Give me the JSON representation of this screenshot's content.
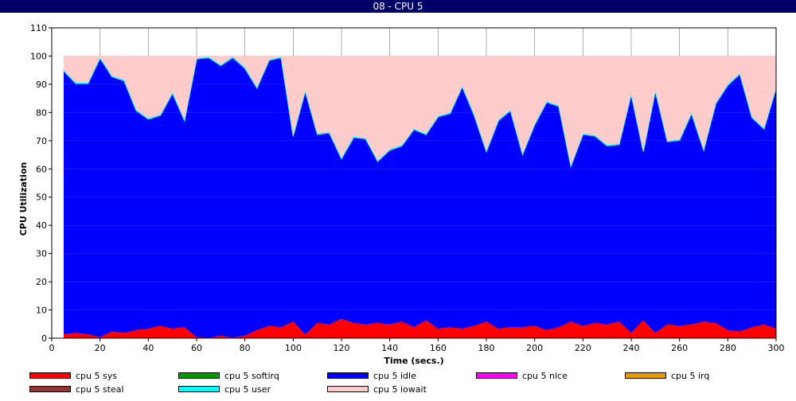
{
  "window": {
    "title": "08 - CPU 5"
  },
  "chart_data": {
    "type": "area",
    "stacked": true,
    "xlabel": "Time (secs.)",
    "ylabel": "CPU Utilization",
    "xlim": [
      0,
      300
    ],
    "ylim": [
      0,
      110
    ],
    "xticks": [
      0,
      20,
      40,
      60,
      80,
      100,
      120,
      140,
      160,
      180,
      200,
      220,
      240,
      260,
      280,
      300
    ],
    "yticks": [
      0,
      10,
      20,
      30,
      40,
      50,
      60,
      70,
      80,
      90,
      100,
      110
    ],
    "grid": true,
    "legend_position": "bottom",
    "x": [
      5,
      10,
      15,
      20,
      25,
      30,
      35,
      40,
      45,
      50,
      55,
      60,
      65,
      70,
      75,
      80,
      85,
      90,
      95,
      100,
      105,
      110,
      115,
      120,
      125,
      130,
      135,
      140,
      145,
      150,
      155,
      160,
      165,
      170,
      175,
      180,
      185,
      190,
      195,
      200,
      205,
      210,
      215,
      220,
      225,
      230,
      235,
      240,
      245,
      250,
      255,
      260,
      265,
      270,
      275,
      280,
      285,
      290,
      295,
      300
    ],
    "series": [
      {
        "name": "cpu 5 sys",
        "color": "#ff0000",
        "values": [
          1.5,
          2,
          1.5,
          0.5,
          2.5,
          2,
          3,
          3.5,
          4.5,
          3.5,
          4,
          0.5,
          0.2,
          1,
          0.3,
          1,
          3,
          4.5,
          4,
          6,
          1.5,
          5.5,
          5,
          7,
          5.5,
          5,
          5.5,
          5,
          6,
          4,
          6.5,
          3.5,
          4,
          3.5,
          4.5,
          6,
          3.5,
          4,
          4,
          4.5,
          3,
          4,
          6,
          4.5,
          5.5,
          5,
          6,
          2,
          6.5,
          2,
          5,
          4.5,
          5,
          6,
          5.5,
          3,
          2.5,
          4,
          5,
          3.5
        ]
      },
      {
        "name": "cpu 5 softirq",
        "color": "#009900",
        "values": [
          0,
          0,
          0,
          0,
          0,
          0,
          0,
          0,
          0,
          0,
          0,
          0,
          0,
          0,
          0,
          0,
          0,
          0,
          0,
          0,
          0,
          0,
          0,
          0,
          0,
          0,
          0,
          0,
          0,
          0,
          0,
          0,
          0,
          0,
          0,
          0,
          0,
          0,
          0,
          0,
          0,
          0,
          0,
          0,
          0,
          0,
          0,
          0,
          0,
          0,
          0,
          0,
          0,
          0,
          0,
          0,
          0,
          0,
          0,
          0
        ]
      },
      {
        "name": "cpu 5 idle",
        "color": "#0000ff",
        "values": [
          93.2,
          88.3,
          88.8,
          98.8,
          90.2,
          89.3,
          77.7,
          74.2,
          74.5,
          83.4,
          73.2,
          98.5,
          99.3,
          95.7,
          99.2,
          94.7,
          85.7,
          94,
          95.5,
          65.7,
          86.2,
          66.8,
          67.8,
          56.7,
          65.7,
          65.7,
          57.2,
          61.7,
          62.2,
          70,
          65.7,
          75,
          75.7,
          85.7,
          74.5,
          60.2,
          73.7,
          76.7,
          61.2,
          71.2,
          80.7,
          78.2,
          55,
          67.8,
          66.2,
          63.2,
          62.7,
          84.5,
          59.7,
          85.7,
          64.7,
          65.7,
          74.7,
          60.7,
          77.7,
          86.7,
          91.2,
          74.2,
          69.2,
          85.2
        ]
      },
      {
        "name": "cpu 5 nice",
        "color": "#ff00ff",
        "values": [
          0,
          0,
          0,
          0,
          0,
          0,
          0,
          0,
          0,
          0,
          0,
          0,
          0,
          0,
          0,
          0,
          0,
          0,
          0,
          0,
          0,
          0,
          0,
          0,
          0,
          0,
          0,
          0,
          0,
          0,
          0,
          0,
          0,
          0,
          0,
          0,
          0,
          0,
          0,
          0,
          0,
          0,
          0,
          0,
          0,
          0,
          0,
          0,
          0,
          0,
          0,
          0,
          0,
          0,
          0,
          0,
          0,
          0,
          0,
          0
        ]
      },
      {
        "name": "cpu 5 irq",
        "color": "#e69900",
        "values": [
          0,
          0,
          0,
          0,
          0,
          0,
          0,
          0,
          0,
          0,
          0,
          0,
          0,
          0,
          0,
          0,
          0,
          0,
          0,
          0,
          0,
          0,
          0,
          0,
          0,
          0,
          0,
          0,
          0,
          0,
          0,
          0,
          0,
          0,
          0,
          0,
          0,
          0,
          0,
          0,
          0,
          0,
          0,
          0,
          0,
          0,
          0,
          0,
          0,
          0,
          0,
          0,
          0,
          0,
          0,
          0,
          0,
          0,
          0,
          0
        ]
      },
      {
        "name": "cpu 5 steal",
        "color": "#993333",
        "values": [
          0,
          0,
          0,
          0,
          0,
          0,
          0,
          0,
          0,
          0,
          0,
          0,
          0,
          0,
          0,
          0,
          0,
          0,
          0,
          0,
          0,
          0,
          0,
          0,
          0,
          0,
          0,
          0,
          0,
          0,
          0,
          0,
          0,
          0,
          0,
          0,
          0,
          0,
          0,
          0,
          0,
          0,
          0,
          0,
          0,
          0,
          0,
          0,
          0,
          0,
          0,
          0,
          0,
          0,
          0,
          0,
          0,
          0,
          0,
          0
        ]
      },
      {
        "name": "cpu 5 user",
        "color": "#00ffff",
        "values": [
          0.3,
          0.3,
          0.3,
          0.3,
          0.3,
          0.3,
          0.3,
          0.3,
          0.3,
          0.3,
          0.3,
          0.3,
          0.3,
          0.3,
          0.3,
          0.3,
          0.3,
          0.3,
          0.3,
          0.3,
          0.3,
          0.3,
          0.3,
          0.3,
          0.3,
          0.3,
          0.3,
          0.3,
          0.3,
          0.3,
          0.3,
          0.3,
          0.3,
          0.3,
          0.3,
          0.3,
          0.3,
          0.3,
          0.3,
          0.3,
          0.3,
          0.3,
          0.3,
          0.3,
          0.3,
          0.3,
          0.3,
          0.3,
          0.3,
          0.3,
          0.3,
          0.3,
          0.3,
          0.3,
          0.3,
          0.3,
          0.3,
          0.3,
          0.3,
          0.3
        ]
      },
      {
        "name": "cpu 5 iowait",
        "color": "#ffcccc",
        "values": [
          5,
          9.4,
          9.4,
          0.4,
          7,
          8.4,
          19,
          22,
          20.7,
          12.8,
          22.5,
          0.7,
          0.2,
          3,
          0.2,
          4,
          11,
          1.2,
          0.2,
          28,
          12,
          27.4,
          26.9,
          36,
          28.5,
          29,
          37,
          33,
          31.5,
          25.7,
          27.5,
          21.2,
          20,
          10.5,
          20.7,
          33.5,
          22.5,
          19,
          34.5,
          24,
          16,
          17.5,
          38.7,
          27.4,
          28,
          31.5,
          31,
          13.2,
          33.5,
          12,
          30,
          29.5,
          20,
          33,
          16.5,
          10,
          6,
          21.5,
          25.5,
          11
        ]
      }
    ]
  },
  "legend": [
    {
      "label": "cpu 5 sys",
      "color": "#ff0000"
    },
    {
      "label": "cpu 5 softirq",
      "color": "#009900"
    },
    {
      "label": "cpu 5 idle",
      "color": "#0000ff"
    },
    {
      "label": "cpu 5 nice",
      "color": "#ff00ff"
    },
    {
      "label": "cpu 5 irq",
      "color": "#e69900"
    },
    {
      "label": "cpu 5 steal",
      "color": "#993333"
    },
    {
      "label": "cpu 5 user",
      "color": "#00ffff"
    },
    {
      "label": "cpu 5 iowait",
      "color": "#ffcccc"
    }
  ]
}
